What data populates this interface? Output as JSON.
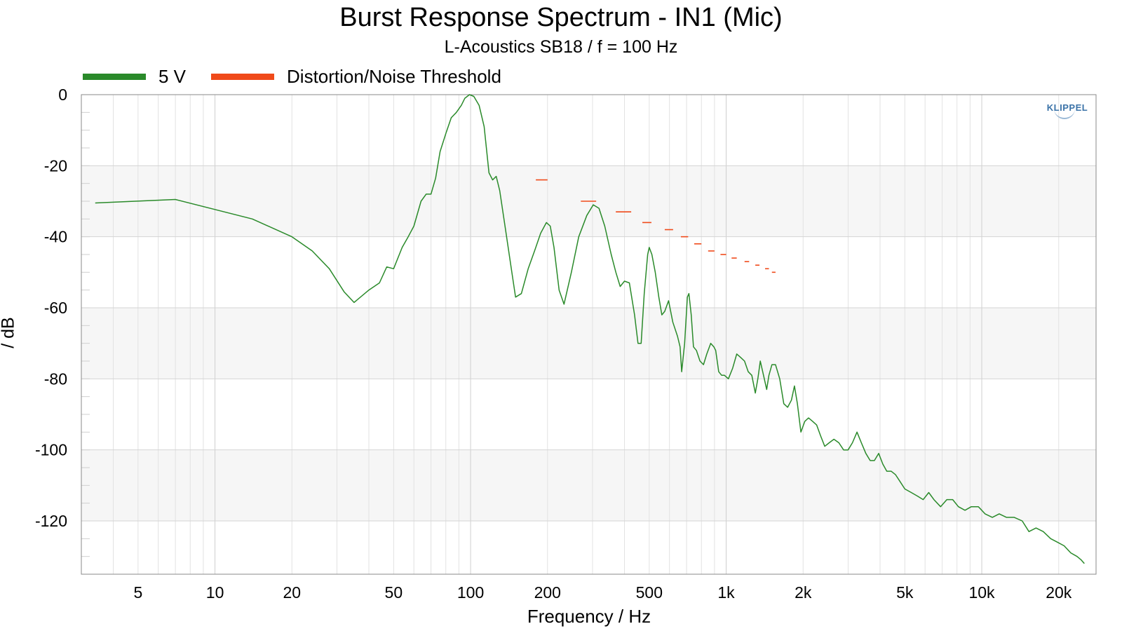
{
  "chart_data": {
    "type": "line",
    "title": "Burst Response Spectrum - IN1 (Mic)",
    "subtitle": "L-Acoustics SB18 / f = 100 Hz",
    "xlabel": "Frequency / Hz",
    "ylabel": "/ dB",
    "x_scale": "log",
    "xlim": [
      3,
      28000
    ],
    "ylim": [
      -135,
      0
    ],
    "x_ticks": [
      {
        "value": 5,
        "label": "5"
      },
      {
        "value": 10,
        "label": "10"
      },
      {
        "value": 20,
        "label": "20"
      },
      {
        "value": 50,
        "label": "50"
      },
      {
        "value": 100,
        "label": "100"
      },
      {
        "value": 200,
        "label": "200"
      },
      {
        "value": 500,
        "label": "500"
      },
      {
        "value": 1000,
        "label": "1k"
      },
      {
        "value": 2000,
        "label": "2k"
      },
      {
        "value": 5000,
        "label": "5k"
      },
      {
        "value": 10000,
        "label": "10k"
      },
      {
        "value": 20000,
        "label": "20k"
      }
    ],
    "y_ticks": [
      0,
      -20,
      -40,
      -60,
      -80,
      -100,
      -120
    ],
    "grid": true,
    "legend_position": "top-left",
    "series": [
      {
        "name": "5 V",
        "color": "#2a8a2a",
        "style": "line",
        "points": [
          [
            3.4,
            -30.5
          ],
          [
            7,
            -29.5
          ],
          [
            14,
            -35
          ],
          [
            20,
            -40
          ],
          [
            24,
            -44
          ],
          [
            28,
            -49
          ],
          [
            32,
            -55.5
          ],
          [
            35,
            -58.5
          ],
          [
            40,
            -55
          ],
          [
            44,
            -53
          ],
          [
            47,
            -48.5
          ],
          [
            50,
            -49
          ],
          [
            54,
            -43
          ],
          [
            57,
            -40
          ],
          [
            60,
            -37
          ],
          [
            64,
            -30
          ],
          [
            67,
            -28
          ],
          [
            70,
            -28
          ],
          [
            73,
            -23.5
          ],
          [
            76,
            -16
          ],
          [
            80,
            -11
          ],
          [
            84,
            -6.5
          ],
          [
            88,
            -5
          ],
          [
            92,
            -3
          ],
          [
            95,
            -1
          ],
          [
            99,
            0
          ],
          [
            103,
            -0.5
          ],
          [
            108,
            -3
          ],
          [
            113,
            -9
          ],
          [
            118,
            -22
          ],
          [
            122,
            -24
          ],
          [
            126,
            -23
          ],
          [
            130,
            -27
          ],
          [
            137,
            -38
          ],
          [
            145,
            -50
          ],
          [
            150,
            -57
          ],
          [
            158,
            -56
          ],
          [
            168,
            -49
          ],
          [
            178,
            -44
          ],
          [
            188,
            -39
          ],
          [
            198,
            -36
          ],
          [
            205,
            -37
          ],
          [
            212,
            -43
          ],
          [
            222,
            -55
          ],
          [
            232,
            -59
          ],
          [
            248,
            -50
          ],
          [
            265,
            -40
          ],
          [
            285,
            -34
          ],
          [
            302,
            -31
          ],
          [
            318,
            -32
          ],
          [
            335,
            -37
          ],
          [
            355,
            -45
          ],
          [
            370,
            -50
          ],
          [
            385,
            -54
          ],
          [
            400,
            -52.5
          ],
          [
            418,
            -53
          ],
          [
            438,
            -62
          ],
          [
            452,
            -70
          ],
          [
            465,
            -70
          ],
          [
            478,
            -56
          ],
          [
            493,
            -45
          ],
          [
            500,
            -43
          ],
          [
            512,
            -45
          ],
          [
            528,
            -50
          ],
          [
            545,
            -57
          ],
          [
            560,
            -62
          ],
          [
            575,
            -61
          ],
          [
            595,
            -58
          ],
          [
            618,
            -64
          ],
          [
            645,
            -68
          ],
          [
            660,
            -71
          ],
          [
            670,
            -78
          ],
          [
            688,
            -70
          ],
          [
            705,
            -57
          ],
          [
            715,
            -56
          ],
          [
            730,
            -62
          ],
          [
            745,
            -71
          ],
          [
            765,
            -72
          ],
          [
            790,
            -75
          ],
          [
            815,
            -76
          ],
          [
            840,
            -73
          ],
          [
            870,
            -70
          ],
          [
            895,
            -71
          ],
          [
            910,
            -72
          ],
          [
            935,
            -78
          ],
          [
            960,
            -79
          ],
          [
            985,
            -79
          ],
          [
            1020,
            -80
          ],
          [
            1060,
            -77
          ],
          [
            1100,
            -73
          ],
          [
            1140,
            -74
          ],
          [
            1180,
            -75
          ],
          [
            1220,
            -78
          ],
          [
            1260,
            -79
          ],
          [
            1300,
            -84
          ],
          [
            1330,
            -80
          ],
          [
            1360,
            -75
          ],
          [
            1400,
            -79
          ],
          [
            1440,
            -83
          ],
          [
            1470,
            -79
          ],
          [
            1510,
            -76
          ],
          [
            1560,
            -76
          ],
          [
            1620,
            -80
          ],
          [
            1680,
            -87
          ],
          [
            1740,
            -88
          ],
          [
            1800,
            -86
          ],
          [
            1850,
            -82
          ],
          [
            1900,
            -87
          ],
          [
            1960,
            -95
          ],
          [
            2030,
            -92
          ],
          [
            2100,
            -91
          ],
          [
            2180,
            -92
          ],
          [
            2260,
            -93
          ],
          [
            2340,
            -96
          ],
          [
            2430,
            -99
          ],
          [
            2530,
            -98
          ],
          [
            2640,
            -97
          ],
          [
            2760,
            -98
          ],
          [
            2880,
            -100
          ],
          [
            3000,
            -100
          ],
          [
            3120,
            -98
          ],
          [
            3250,
            -95
          ],
          [
            3380,
            -98
          ],
          [
            3520,
            -101
          ],
          [
            3660,
            -103
          ],
          [
            3800,
            -103
          ],
          [
            3950,
            -101
          ],
          [
            4100,
            -104
          ],
          [
            4250,
            -106
          ],
          [
            4420,
            -106
          ],
          [
            4600,
            -107
          ],
          [
            4800,
            -109
          ],
          [
            5000,
            -111
          ],
          [
            5300,
            -112
          ],
          [
            5600,
            -113
          ],
          [
            5900,
            -114
          ],
          [
            6200,
            -112
          ],
          [
            6500,
            -114
          ],
          [
            6900,
            -116
          ],
          [
            7300,
            -114
          ],
          [
            7700,
            -114
          ],
          [
            8100,
            -116
          ],
          [
            8600,
            -117
          ],
          [
            9100,
            -116
          ],
          [
            9700,
            -116
          ],
          [
            10300,
            -118
          ],
          [
            11000,
            -119
          ],
          [
            11700,
            -118
          ],
          [
            12500,
            -119
          ],
          [
            13400,
            -119
          ],
          [
            14400,
            -120
          ],
          [
            15300,
            -123
          ],
          [
            16300,
            -122
          ],
          [
            17400,
            -123
          ],
          [
            18600,
            -125
          ],
          [
            19800,
            -126
          ],
          [
            21000,
            -127
          ],
          [
            22300,
            -129
          ],
          [
            23600,
            -130
          ],
          [
            24500,
            -131
          ],
          [
            25200,
            -132
          ]
        ]
      },
      {
        "name": "Distortion/Noise Threshold",
        "color": "#f04a1a",
        "style": "steps",
        "segments": [
          [
            180,
            200,
            -24
          ],
          [
            270,
            310,
            -30
          ],
          [
            370,
            425,
            -33
          ],
          [
            470,
            510,
            -36
          ],
          [
            575,
            620,
            -38
          ],
          [
            665,
            710,
            -40
          ],
          [
            750,
            800,
            -42
          ],
          [
            850,
            900,
            -44
          ],
          [
            950,
            1000,
            -45
          ],
          [
            1050,
            1100,
            -46
          ],
          [
            1180,
            1230,
            -47
          ],
          [
            1300,
            1350,
            -48
          ],
          [
            1420,
            1470,
            -49
          ],
          [
            1510,
            1560,
            -50
          ]
        ]
      }
    ]
  },
  "logo": {
    "text": "KLIPPEL"
  }
}
